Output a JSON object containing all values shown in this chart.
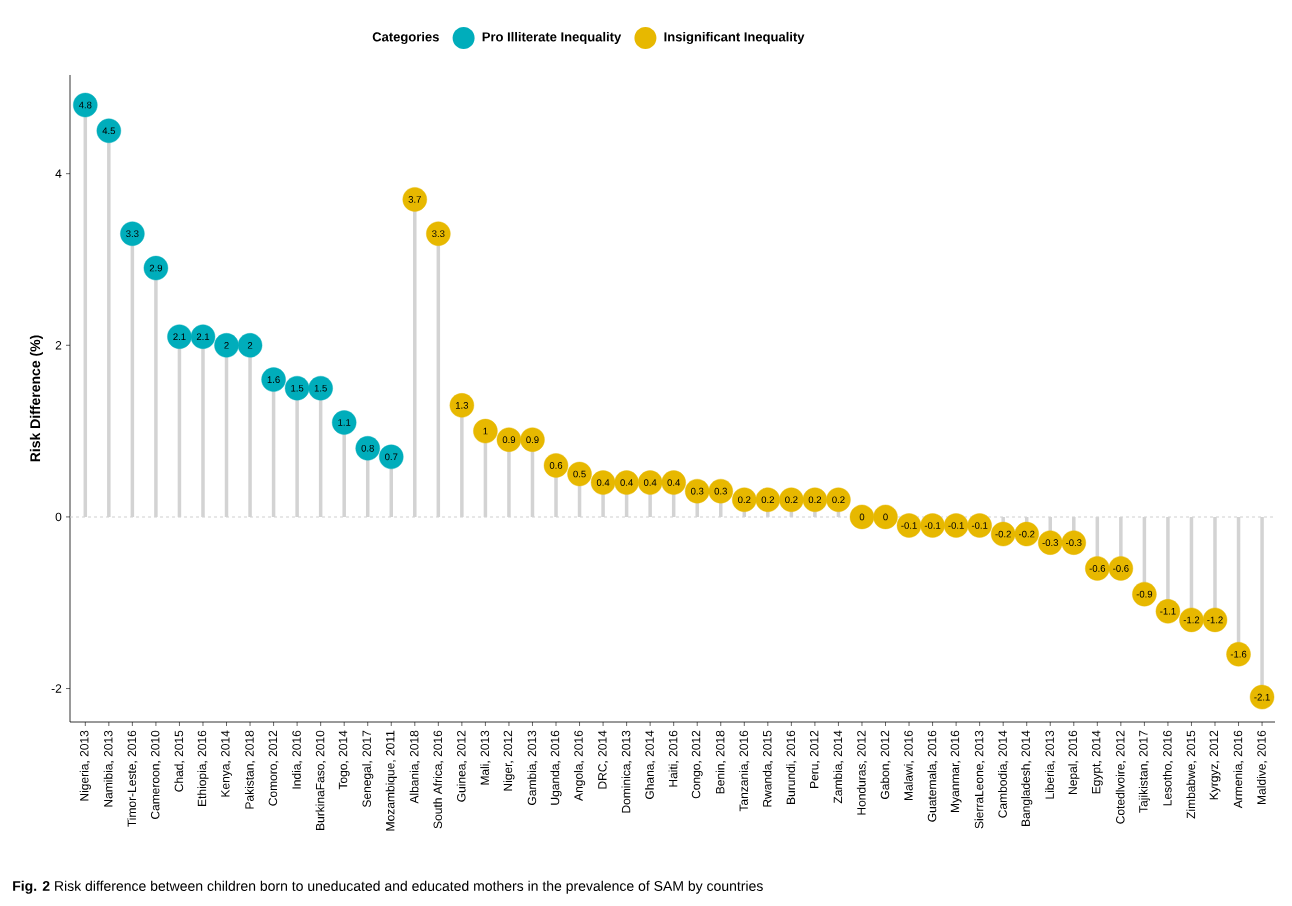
{
  "chart_data": {
    "type": "lollipop",
    "categories": [
      "Nigeria, 2013",
      "Namibia, 2013",
      "Timor-Leste, 2016",
      "Cameroon, 2010",
      "Chad, 2015",
      "Ethiopia, 2016",
      "Kenya, 2014",
      "Pakistan, 2018",
      "Comoro, 2012",
      "India, 2016",
      "BurkinaFaso, 2010",
      "Togo, 2014",
      "Senegal, 2017",
      "Mozambique, 2011",
      "Albania, 2018",
      "South Africa, 2016",
      "Guinea, 2012",
      "Mali, 2013",
      "Niger, 2012",
      "Gambia, 2013",
      "Uganda, 2016",
      "Angola, 2016",
      "DRC, 2014",
      "Dominica, 2013",
      "Ghana, 2014",
      "Haiti, 2016",
      "Congo, 2012",
      "Benin, 2018",
      "Tanzania, 2016",
      "Rwanda, 2015",
      "Burundi, 2016",
      "Peru, 2012",
      "Zambia, 2014",
      "Honduras, 2012",
      "Gabon, 2012",
      "Malawi, 2016",
      "Guatemala, 2016",
      "Myanmar, 2016",
      "SierraLeone, 2013",
      "Cambodia, 2014",
      "Bangladesh, 2014",
      "Liberia, 2013",
      "Nepal, 2016",
      "Egypt, 2014",
      "Cotedlvoire, 2012",
      "Tajikistan, 2017",
      "Lesotho, 2016",
      "Zimbabwe, 2015",
      "Kyrgyz, 2012",
      "Armenia, 2016",
      "Maldive, 2016"
    ],
    "series": [
      {
        "name": "Pro Illiterate Inequality",
        "color": "#00adbb",
        "values": [
          4.8,
          4.5,
          3.3,
          2.9,
          2.1,
          2.1,
          2,
          2,
          1.6,
          1.5,
          1.5,
          1.1,
          0.8,
          0.7,
          null,
          null,
          null,
          null,
          null,
          null,
          null,
          null,
          null,
          null,
          null,
          null,
          null,
          null,
          null,
          null,
          null,
          null,
          null,
          null,
          null,
          null,
          null,
          null,
          null,
          null,
          null,
          null,
          null,
          null,
          null,
          null,
          null,
          null,
          null,
          null,
          null
        ]
      },
      {
        "name": "Insignificant Inequality",
        "color": "#e7b800",
        "values": [
          null,
          null,
          null,
          null,
          null,
          null,
          null,
          null,
          null,
          null,
          null,
          null,
          null,
          null,
          3.7,
          3.3,
          1.3,
          1,
          0.9,
          0.9,
          0.6,
          0.5,
          0.4,
          0.4,
          0.4,
          0.4,
          0.3,
          0.3,
          0.2,
          0.2,
          0.2,
          0.2,
          0.2,
          0,
          0,
          -0.1,
          -0.1,
          -0.1,
          -0.1,
          -0.2,
          -0.2,
          -0.3,
          -0.3,
          -0.6,
          -0.6,
          -0.9,
          -1.1,
          -1.2,
          -1.2,
          -1.6,
          -2.1
        ]
      }
    ],
    "ylabel": "Risk Difference (%)",
    "legend_title": "Categories",
    "legend": "top",
    "ylim": [
      -2.39,
      5.15
    ],
    "yticks": [
      -2,
      0,
      2,
      4
    ],
    "ref_lines": [
      {
        "axis": "y",
        "value": 0,
        "color": "#d0d0d0",
        "line_style": "dashed"
      }
    ],
    "marker": "circle",
    "data_labels": true,
    "annotations": [
      "**Fig. 2** Risk difference between children born to uneducated and educated mothers in the prevalence of SAM by countries"
    ]
  }
}
